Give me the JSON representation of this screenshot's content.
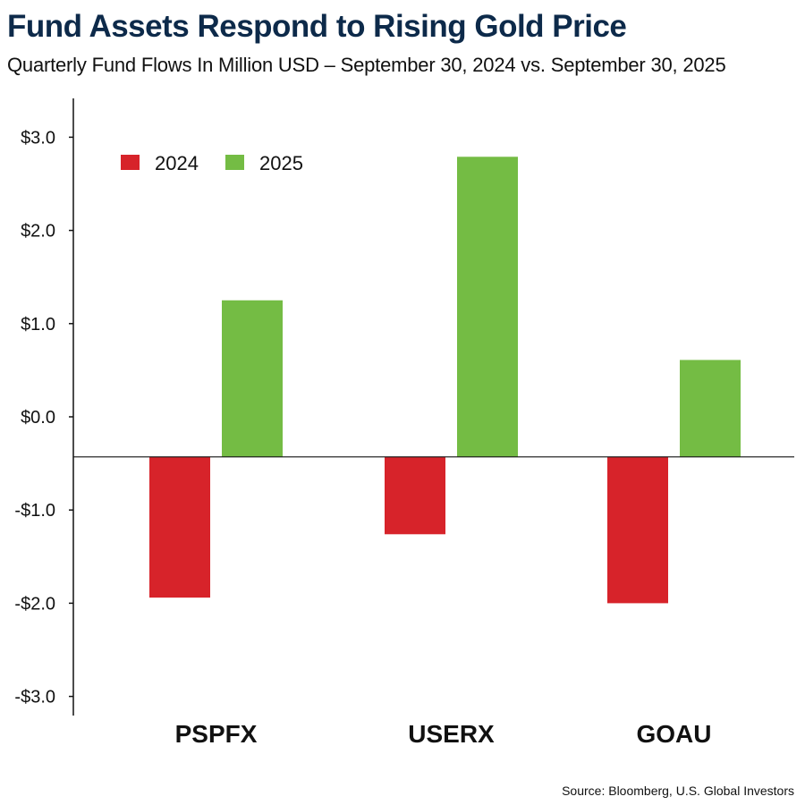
{
  "chart_data": {
    "type": "bar",
    "title": "Fund Assets Respond to Rising Gold Price",
    "subtitle": "Quarterly Fund Flows In Million USD – September 30, 2024 vs. September 30, 2025",
    "categories": [
      "PSPFX",
      "USERX",
      "GOAU"
    ],
    "series": [
      {
        "name": "2024",
        "color": "#d7232a",
        "values": [
          -1.94,
          -1.26,
          -2.0
        ]
      },
      {
        "name": "2025",
        "color": "#74bc44",
        "values": [
          1.25,
          2.79,
          0.61
        ]
      }
    ],
    "yticks": [
      "$3.0",
      "$2.0",
      "$1.0",
      "$0.0",
      "-$1.0",
      "-$2.0",
      "-$3.0"
    ],
    "ytick_values": [
      3,
      2,
      1,
      0,
      -1,
      -2,
      -3
    ],
    "ylim": [
      -3.3,
      3.4
    ],
    "legend": "top-left",
    "grid": false,
    "source": "Source: Bloomberg, U.S. Global Investors"
  }
}
